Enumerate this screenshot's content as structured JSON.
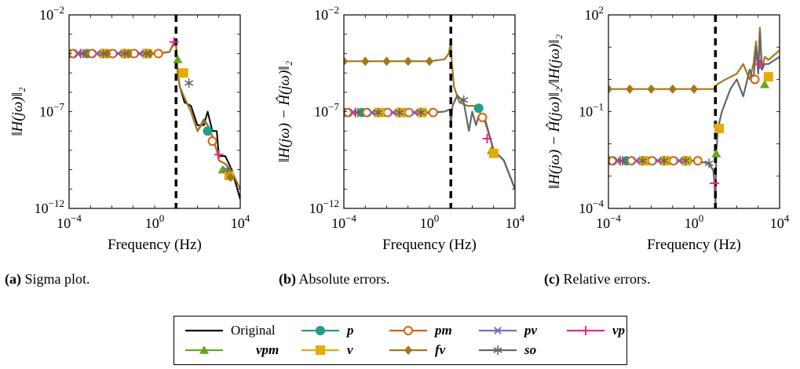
{
  "colors": {
    "Original": "#000000",
    "p": "#1f9e89",
    "pm": "#d95f02",
    "pv": "#7570b3",
    "vp": "#e7298a",
    "vpm": "#66a61e",
    "v": "#e6ab02",
    "fv": "#a6761d",
    "so": "#666666",
    "marker": "#000000"
  },
  "legend": {
    "entries": [
      {
        "key": "Original",
        "label": "Original",
        "marker": "none",
        "math": false
      },
      {
        "key": "p",
        "label": "p",
        "marker": "circle",
        "math": true
      },
      {
        "key": "pm",
        "label": "pm",
        "marker": "ocircle",
        "math": true
      },
      {
        "key": "pv",
        "label": "pv",
        "marker": "x",
        "math": true
      },
      {
        "key": "vp",
        "label": "vp",
        "marker": "plus",
        "math": true
      },
      {
        "key": "vpm",
        "label": "vpm",
        "marker": "triangle",
        "math": true
      },
      {
        "key": "v",
        "label": "v",
        "marker": "square",
        "math": true
      },
      {
        "key": "fv",
        "label": "fv",
        "marker": "diamond",
        "math": true
      },
      {
        "key": "so",
        "label": "so",
        "marker": "star",
        "math": true
      }
    ]
  },
  "captions": [
    {
      "tag": "(a)",
      "text": "Sigma plot."
    },
    {
      "tag": "(b)",
      "text": "Absolute errors."
    },
    {
      "tag": "(c)",
      "text": "Relative errors."
    }
  ],
  "chart_data": [
    {
      "type": "line",
      "xscale": "log",
      "yscale": "log",
      "xlabel": "Frequency (Hz)",
      "ylabel": "‖H(jω)‖₂",
      "xlim": [
        0.0001,
        10000
      ],
      "ylim": [
        1e-12,
        0.01
      ],
      "xticks": [
        "10−4",
        "100",
        "104"
      ],
      "yticks": [
        "10−12",
        "10−7",
        "10−2"
      ],
      "vline_x": 10,
      "series": [
        {
          "name": "Original",
          "x": [
            0.0001,
            0.001,
            0.01,
            0.1,
            1,
            5,
            8,
            10,
            12,
            15,
            25,
            50,
            100,
            200,
            300,
            500,
            800,
            1000,
            2000,
            4000,
            10000
          ],
          "y": [
            0.0001,
            0.0001,
            0.0001,
            0.0001,
            0.0001,
            0.00012,
            0.0004,
            0.0003,
            1e-05,
            2e-06,
            3e-07,
            2e-07,
            2e-08,
            2e-08,
            1e-07,
            1e-08,
            1e-08,
            5e-10,
            5e-10,
            1e-10,
            3e-12
          ]
        },
        {
          "name": "so",
          "x": [
            0.0001,
            0.001,
            0.01,
            0.1,
            1,
            5,
            8,
            10,
            12,
            15,
            25,
            50,
            100,
            200,
            300,
            500,
            800,
            1000,
            2000,
            4000,
            10000
          ],
          "y": [
            0.0001,
            0.0001,
            0.0001,
            0.0001,
            0.0001,
            0.00012,
            0.0004,
            0.0003,
            1e-05,
            2e-06,
            5e-07,
            1e-07,
            1e-08,
            4e-08,
            2e-08,
            5e-09,
            1e-09,
            3e-10,
            2e-10,
            8e-11,
            1e-11
          ]
        },
        {
          "name": "fv",
          "x": [
            0.0001,
            0.001,
            0.01,
            0.1,
            1,
            5,
            8,
            10,
            12,
            15,
            25,
            50,
            100,
            200,
            300,
            500,
            800,
            1000,
            2000,
            4000,
            10000
          ],
          "y": [
            0.0001,
            0.0001,
            0.0001,
            0.0001,
            0.0001,
            0.00012,
            0.0004,
            0.0003,
            1e-05,
            2e-06,
            5e-07,
            1e-07,
            1e-08,
            3e-08,
            2e-08,
            5e-09,
            1e-09,
            3e-10,
            2e-10,
            8e-11,
            1e-11
          ]
        }
      ],
      "markers": [
        {
          "key": "p",
          "x": [
            0.0001,
            0.0007,
            0.006,
            0.06,
            0.5,
            300
          ],
          "y": [
            0.0001,
            0.0001,
            0.0001,
            0.0001,
            0.0001,
            1e-08
          ]
        },
        {
          "key": "pm",
          "x": [
            0.00016,
            0.0012,
            0.011,
            0.11,
            1.5,
            500
          ],
          "y": [
            0.0001,
            0.0001,
            0.0001,
            0.0001,
            0.0001,
            3e-09
          ]
        },
        {
          "key": "pv",
          "x": [
            0.00025,
            0.002,
            0.02,
            0.2
          ],
          "y": [
            0.0001,
            0.0001,
            0.0001,
            0.0001
          ]
        },
        {
          "key": "vp",
          "x": [
            0.00035,
            0.003,
            0.03,
            0.3,
            8,
            1000
          ],
          "y": [
            0.0001,
            0.0001,
            0.0001,
            0.0001,
            0.0004,
            6e-10
          ]
        },
        {
          "key": "vpm",
          "x": [
            12,
            1500
          ],
          "y": [
            5e-05,
            1e-10
          ]
        },
        {
          "key": "v",
          "x": [
            0.0045,
            0.045,
            0.45,
            22,
            3000
          ],
          "y": [
            0.0001,
            0.0001,
            0.0001,
            1e-05,
            5e-11
          ]
        },
        {
          "key": "fv",
          "x": [
            0.0006,
            0.006,
            0.06,
            0.6,
            3500
          ],
          "y": [
            0.0001,
            0.0001,
            0.0001,
            0.0001,
            4e-11
          ]
        },
        {
          "key": "so",
          "x": [
            0.00045,
            0.004,
            0.04,
            0.4,
            40,
            2500
          ],
          "y": [
            0.0001,
            0.0001,
            0.0001,
            0.0001,
            3e-06,
            1e-10
          ]
        }
      ]
    },
    {
      "type": "line",
      "xscale": "log",
      "yscale": "log",
      "xlabel": "Frequency (Hz)",
      "ylabel": "‖H(jω) − Ĥ(jω)‖₂",
      "xlim": [
        0.0001,
        10000
      ],
      "ylim": [
        1e-12,
        0.01
      ],
      "xticks": [
        "10−4",
        "100",
        "104"
      ],
      "yticks": [
        "10−12",
        "10−7",
        "10−2"
      ],
      "vline_x": 10,
      "series": [
        {
          "name": "fv",
          "x": [
            0.0001,
            0.001,
            0.01,
            0.1,
            1,
            5,
            8,
            10,
            11,
            14,
            25,
            60,
            150,
            400,
            1000,
            3000,
            10000
          ],
          "y": [
            4e-05,
            4e-05,
            4e-05,
            4e-05,
            4e-05,
            5e-05,
            0.0001,
            0.0004,
            4e-05,
            2e-06,
            3e-07,
            2e-07,
            2e-07,
            3e-08,
            1e-09,
            3e-10,
            1e-11
          ]
        },
        {
          "name": "so",
          "x": [
            0.0001,
            0.001,
            0.01,
            0.1,
            1,
            5,
            9,
            10,
            12,
            20,
            40,
            70,
            100,
            150,
            200,
            400,
            1000,
            3000,
            10000
          ],
          "y": [
            9e-08,
            9e-08,
            9e-08,
            9e-08,
            9e-08,
            1e-07,
            1.3e-07,
            2e-08,
            2e-07,
            7e-07,
            3e-07,
            1e-08,
            1e-07,
            2e-08,
            6e-08,
            4e-08,
            1e-09,
            3e-10,
            1e-11
          ]
        }
      ],
      "markers": [
        {
          "key": "fv",
          "x": [
            0.0001,
            0.001,
            0.01,
            0.1,
            1
          ],
          "y": [
            4e-05,
            4e-05,
            4e-05,
            4e-05,
            4e-05
          ]
        },
        {
          "key": "p",
          "x": [
            0.0001,
            0.0007,
            0.006,
            0.06,
            0.5,
            200
          ],
          "y": [
            9e-08,
            9e-08,
            9e-08,
            9e-08,
            9e-08,
            1.5e-07
          ]
        },
        {
          "key": "pm",
          "x": [
            0.00016,
            0.0012,
            0.011,
            0.11,
            1.5,
            300
          ],
          "y": [
            9e-08,
            9e-08,
            9e-08,
            9e-08,
            9e-08,
            5e-08
          ]
        },
        {
          "key": "pv",
          "x": [
            0.00025,
            0.002,
            0.02,
            0.2
          ],
          "y": [
            9e-08,
            9e-08,
            9e-08,
            9e-08
          ]
        },
        {
          "key": "vp",
          "x": [
            0.00035,
            0.003,
            0.03,
            0.3,
            500
          ],
          "y": [
            9e-08,
            9e-08,
            9e-08,
            9e-08,
            4e-09
          ]
        },
        {
          "key": "vpm",
          "x": [
            800
          ],
          "y": [
            1e-09
          ]
        },
        {
          "key": "v",
          "x": [
            0.0045,
            0.045,
            0.45,
            1000
          ],
          "y": [
            9e-08,
            9e-08,
            9e-08,
            7e-10
          ]
        },
        {
          "key": "so",
          "x": [
            0.00045,
            0.004,
            0.04,
            0.4,
            40
          ],
          "y": [
            9e-08,
            9e-08,
            9e-08,
            9e-08,
            4e-07
          ]
        }
      ]
    },
    {
      "type": "line",
      "xscale": "log",
      "yscale": "log",
      "xlabel": "Frequency (Hz)",
      "ylabel": "‖H(jω) − Ĥ(jω)‖₂/‖H(jω)‖₂",
      "xlim": [
        0.0001,
        10000
      ],
      "ylim": [
        0.0001,
        100
      ],
      "xticks": [
        "10−4",
        "100",
        "104"
      ],
      "yticks": [
        "10−4",
        "10−1",
        "102"
      ],
      "vline_x": 10,
      "series": [
        {
          "name": "fv",
          "x": [
            0.0001,
            0.001,
            0.01,
            0.1,
            1,
            8,
            10,
            12,
            30,
            100,
            200,
            400,
            600,
            800,
            1000,
            1200,
            1500,
            2000,
            3000,
            10000
          ],
          "y": [
            0.5,
            0.5,
            0.5,
            0.5,
            0.5,
            0.5,
            0.6,
            0.7,
            1,
            1.5,
            3,
            1,
            3,
            15,
            2,
            40,
            2,
            5,
            4,
            8
          ]
        },
        {
          "name": "so",
          "x": [
            0.0001,
            0.001,
            0.01,
            0.1,
            1,
            5,
            8,
            9,
            10,
            11,
            13,
            20,
            50,
            100,
            200,
            400,
            600,
            800,
            1000,
            1200,
            1500,
            2000,
            3000,
            10000
          ],
          "y": [
            0.003,
            0.003,
            0.003,
            0.003,
            0.003,
            0.0025,
            0.0015,
            0.0006,
            0.00015,
            0.005,
            0.03,
            0.1,
            0.5,
            1,
            0.3,
            2,
            1,
            10,
            1.5,
            30,
            2,
            3,
            3,
            5
          ]
        }
      ],
      "markers": [
        {
          "key": "fv",
          "x": [
            0.0001,
            0.001,
            0.01,
            0.1,
            1
          ],
          "y": [
            0.5,
            0.5,
            0.5,
            0.5,
            0.5
          ]
        },
        {
          "key": "p",
          "x": [
            0.0001,
            0.0007,
            0.006,
            0.06,
            0.5
          ],
          "y": [
            0.003,
            0.003,
            0.003,
            0.003,
            0.003
          ]
        },
        {
          "key": "pm",
          "x": [
            0.00016,
            0.0012,
            0.011,
            0.11,
            1.5,
            700
          ],
          "y": [
            0.003,
            0.003,
            0.003,
            0.003,
            0.003,
            1
          ]
        },
        {
          "key": "pv",
          "x": [
            0.00025,
            0.002,
            0.02,
            0.2
          ],
          "y": [
            0.003,
            0.003,
            0.003,
            0.003
          ]
        },
        {
          "key": "vp",
          "x": [
            0.00035,
            0.003,
            0.03,
            0.3,
            9,
            1200
          ],
          "y": [
            0.003,
            0.003,
            0.003,
            0.003,
            0.0006,
            3
          ]
        },
        {
          "key": "vpm",
          "x": [
            11,
            2000
          ],
          "y": [
            0.005,
            0.7
          ]
        },
        {
          "key": "v",
          "x": [
            0.0045,
            0.045,
            0.45,
            15,
            3000
          ],
          "y": [
            0.003,
            0.003,
            0.003,
            0.03,
            1.2
          ]
        },
        {
          "key": "so",
          "x": [
            0.00045,
            0.004,
            0.04,
            0.4,
            5
          ],
          "y": [
            0.003,
            0.003,
            0.003,
            0.003,
            0.0025
          ]
        }
      ]
    }
  ]
}
